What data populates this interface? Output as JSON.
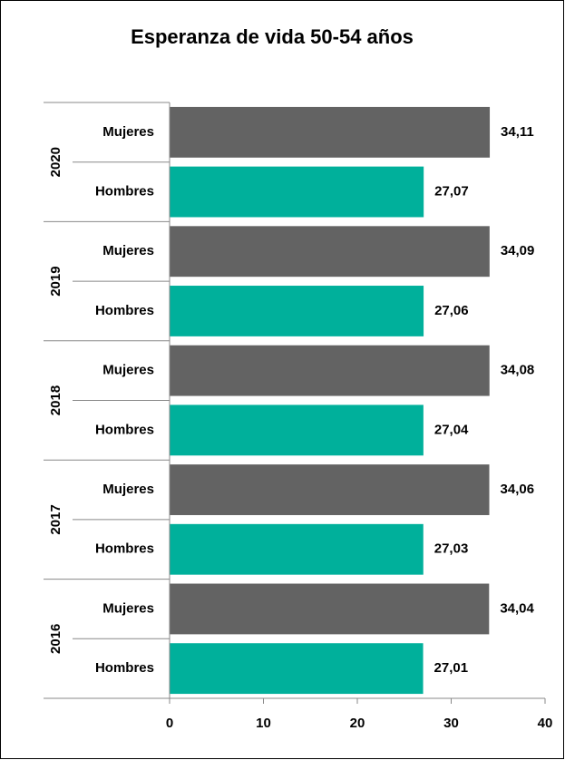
{
  "chart_data": {
    "type": "bar",
    "orientation": "horizontal",
    "title": "Esperanza de vida 50-54 años",
    "categories": [
      "2020",
      "2019",
      "2018",
      "2017",
      "2016"
    ],
    "series": [
      {
        "name": "Mujeres",
        "color": "#636363",
        "values": [
          34.11,
          34.09,
          34.08,
          34.06,
          34.04
        ],
        "value_labels": [
          "34,11",
          "34,09",
          "34,08",
          "34,06",
          "34,04"
        ]
      },
      {
        "name": "Hombres",
        "color": "#00b09b",
        "values": [
          27.07,
          27.06,
          27.04,
          27.03,
          27.01
        ],
        "value_labels": [
          "27,07",
          "27,06",
          "27,04",
          "27,03",
          "27,01"
        ]
      }
    ],
    "xlim": [
      0,
      40
    ],
    "xticks": [
      0,
      10,
      20,
      30,
      40
    ],
    "grid": false
  }
}
